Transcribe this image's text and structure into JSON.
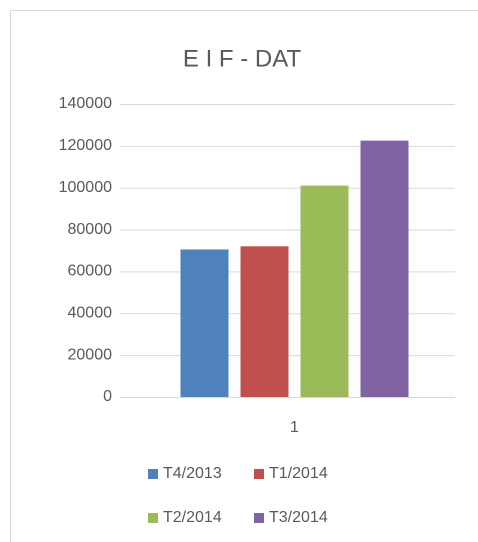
{
  "chart_data": {
    "type": "bar",
    "title": "E I F - DAT",
    "categories": [
      "1"
    ],
    "series": [
      {
        "name": "T4/2013",
        "color": "#4f81bd",
        "values": [
          70500
        ]
      },
      {
        "name": "T1/2014",
        "color": "#c0504d",
        "values": [
          72000
        ]
      },
      {
        "name": "T2/2014",
        "color": "#9bbb59",
        "values": [
          101000
        ]
      },
      {
        "name": "T3/2014",
        "color": "#8064a2",
        "values": [
          122500
        ]
      }
    ],
    "ylim": [
      0,
      140000
    ],
    "yticks": [
      0,
      20000,
      40000,
      60000,
      80000,
      100000,
      120000,
      140000
    ],
    "grid": true,
    "legend": "bottom"
  }
}
